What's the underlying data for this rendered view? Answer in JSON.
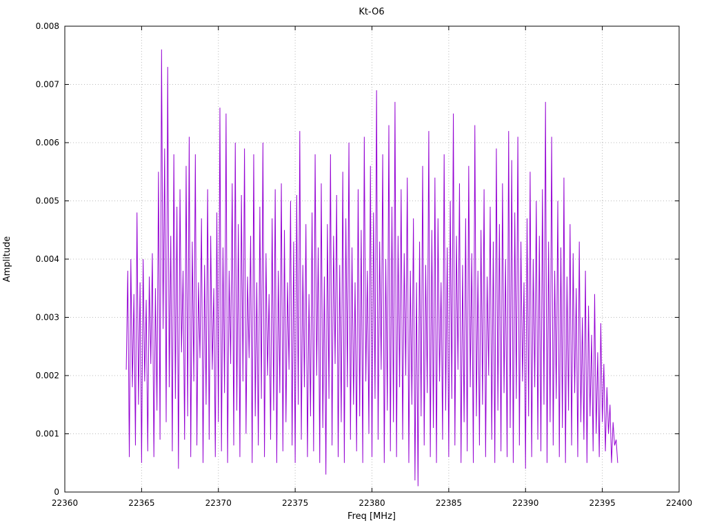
{
  "chart_data": {
    "type": "line",
    "title": "Kt-O6",
    "xlabel": "Freq [MHz]",
    "ylabel": "Amplitude",
    "xlim": [
      22360,
      22400
    ],
    "ylim": [
      0,
      0.008
    ],
    "grid": true,
    "legend": "none",
    "xtick_values": [
      22360,
      22365,
      22370,
      22375,
      22380,
      22385,
      22390,
      22395,
      22400
    ],
    "xtick_labels": [
      "22360",
      "22365",
      "22370",
      "22375",
      "22380",
      "22385",
      "22390",
      "22395",
      "22400"
    ],
    "ytick_values": [
      0,
      0.001,
      0.002,
      0.003,
      0.004,
      0.005,
      0.006,
      0.007,
      0.008
    ],
    "ytick_labels": [
      "0",
      "0.001",
      "0.002",
      "0.003",
      "0.004",
      "0.005",
      "0.006",
      "0.007",
      "0.008"
    ],
    "colors": {
      "line": "#9400d3",
      "grid": "#b8b8b8",
      "axis": "#000000"
    },
    "series": [
      {
        "name": "Kt-O6",
        "color": "#9400d3",
        "x_start": 22364.0,
        "x_step": 0.1,
        "values": [
          0.0021,
          0.0038,
          0.0006,
          0.004,
          0.0018,
          0.0034,
          0.0008,
          0.0048,
          0.0015,
          0.0036,
          0.0005,
          0.004,
          0.0019,
          0.0033,
          0.0007,
          0.0037,
          0.0022,
          0.0041,
          0.0006,
          0.0035,
          0.0014,
          0.0055,
          0.0009,
          0.0076,
          0.0028,
          0.0059,
          0.0012,
          0.0073,
          0.0018,
          0.0044,
          0.0007,
          0.0058,
          0.0016,
          0.0049,
          0.0004,
          0.0052,
          0.0024,
          0.0038,
          0.0009,
          0.0056,
          0.0013,
          0.0061,
          0.0006,
          0.0043,
          0.0019,
          0.0058,
          0.0008,
          0.0036,
          0.0023,
          0.0047,
          0.0005,
          0.0039,
          0.0015,
          0.0052,
          0.0009,
          0.0044,
          0.0021,
          0.0035,
          0.0006,
          0.0048,
          0.0012,
          0.0066,
          0.0007,
          0.0042,
          0.0017,
          0.0065,
          0.0005,
          0.0038,
          0.0022,
          0.0053,
          0.0008,
          0.006,
          0.0014,
          0.0046,
          0.0006,
          0.0051,
          0.0019,
          0.0059,
          0.001,
          0.0037,
          0.0023,
          0.0044,
          0.0005,
          0.0058,
          0.0013,
          0.0036,
          0.0008,
          0.0049,
          0.0016,
          0.006,
          0.0006,
          0.0041,
          0.002,
          0.0034,
          0.0009,
          0.0047,
          0.0014,
          0.0052,
          0.0005,
          0.0038,
          0.0017,
          0.0053,
          0.0007,
          0.0045,
          0.0012,
          0.0036,
          0.0021,
          0.005,
          0.0008,
          0.0043,
          0.0005,
          0.0051,
          0.0015,
          0.0062,
          0.0009,
          0.0039,
          0.0018,
          0.0046,
          0.0006,
          0.0034,
          0.0013,
          0.0048,
          0.0007,
          0.0058,
          0.002,
          0.0042,
          0.0005,
          0.0053,
          0.0011,
          0.0037,
          0.0003,
          0.0046,
          0.0016,
          0.0058,
          0.0008,
          0.0044,
          0.0022,
          0.0051,
          0.0006,
          0.0039,
          0.0012,
          0.0055,
          0.0005,
          0.0047,
          0.0018,
          0.006,
          0.0009,
          0.0042,
          0.0015,
          0.0036,
          0.0007,
          0.0052,
          0.0013,
          0.0045,
          0.0005,
          0.0061,
          0.0019,
          0.0038,
          0.001,
          0.0056,
          0.0006,
          0.0048,
          0.0016,
          0.0069,
          0.0009,
          0.0043,
          0.0021,
          0.0058,
          0.0005,
          0.004,
          0.0014,
          0.0063,
          0.0007,
          0.0049,
          0.0012,
          0.0067,
          0.0006,
          0.0044,
          0.0018,
          0.0052,
          0.0009,
          0.0041,
          0.002,
          0.0054,
          0.0005,
          0.0038,
          0.0015,
          0.0047,
          0.0002,
          0.0036,
          0.0001,
          0.0043,
          0.0013,
          0.0056,
          0.0008,
          0.0039,
          0.0017,
          0.0062,
          0.0006,
          0.0045,
          0.0011,
          0.0054,
          0.0005,
          0.0047,
          0.0019,
          0.0036,
          0.0009,
          0.0058,
          0.0014,
          0.0042,
          0.0006,
          0.005,
          0.0016,
          0.0065,
          0.0008,
          0.0044,
          0.0021,
          0.0053,
          0.0005,
          0.0039,
          0.0012,
          0.0047,
          0.0007,
          0.0056,
          0.0018,
          0.0041,
          0.0005,
          0.0063,
          0.0013,
          0.0038,
          0.0008,
          0.0045,
          0.0015,
          0.0052,
          0.0006,
          0.0037,
          0.002,
          0.0049,
          0.0009,
          0.0043,
          0.0005,
          0.0059,
          0.0014,
          0.0046,
          0.0007,
          0.0053,
          0.0017,
          0.004,
          0.0006,
          0.0062,
          0.0011,
          0.0057,
          0.0005,
          0.0048,
          0.0016,
          0.0061,
          0.0008,
          0.0043,
          0.0019,
          0.0036,
          0.0004,
          0.0047,
          0.0013,
          0.0055,
          0.0006,
          0.004,
          0.0018,
          0.005,
          0.0009,
          0.0044,
          0.0007,
          0.0052,
          0.0015,
          0.0067,
          0.0005,
          0.0043,
          0.0012,
          0.0061,
          0.0008,
          0.0038,
          0.0016,
          0.005,
          0.0006,
          0.0042,
          0.0011,
          0.0054,
          0.0005,
          0.0037,
          0.0014,
          0.0046,
          0.0008,
          0.0041,
          0.0017,
          0.0035,
          0.0006,
          0.0043,
          0.0012,
          0.003,
          0.0009,
          0.0038,
          0.0005,
          0.0032,
          0.0013,
          0.0027,
          0.0007,
          0.0034,
          0.001,
          0.0024,
          0.0006,
          0.0029,
          0.0012,
          0.0022,
          0.0007,
          0.0018,
          0.001,
          0.0015,
          0.0005,
          0.0012,
          0.0008,
          0.0009,
          0.0005
        ]
      }
    ]
  }
}
